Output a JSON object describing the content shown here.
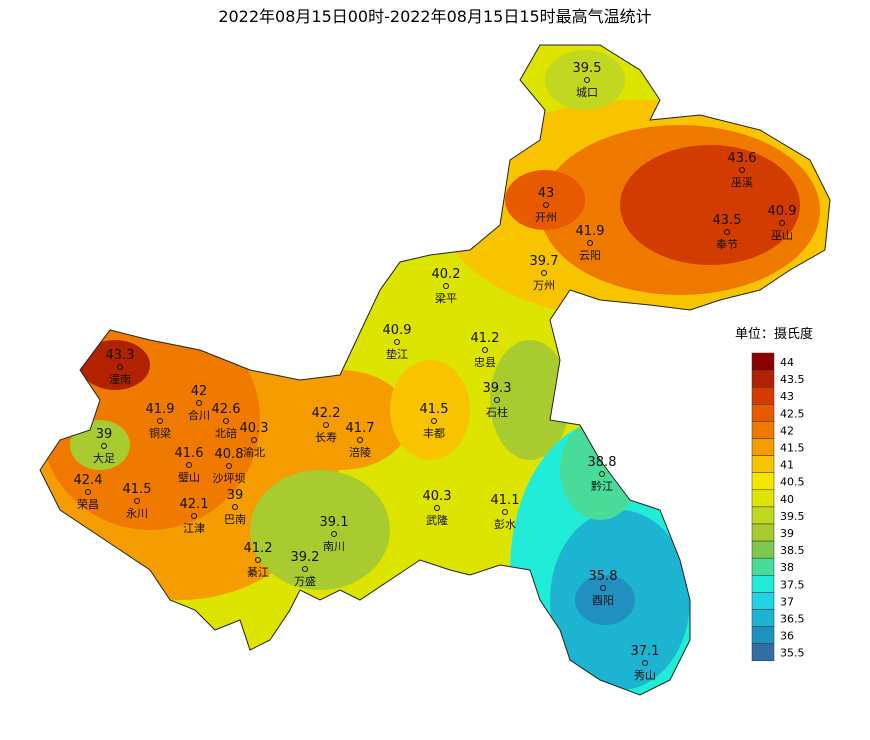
{
  "title": "2022年08月15日00时-2022年08月15日15时最高气温统计",
  "stations": [
    {
      "name": "城口",
      "value": 39.5
    },
    {
      "name": "巫溪",
      "value": 43.6
    },
    {
      "name": "开州",
      "value": 43
    },
    {
      "name": "奉节",
      "value": 43.5
    },
    {
      "name": "巫山",
      "value": 40.9
    },
    {
      "name": "云阳",
      "value": 41.9
    },
    {
      "name": "梁平",
      "value": 40.2
    },
    {
      "name": "万州",
      "value": 39.7
    },
    {
      "name": "垫江",
      "value": 40.9
    },
    {
      "name": "忠县",
      "value": 41.2
    },
    {
      "name": "潼南",
      "value": 43.3
    },
    {
      "name": "石柱",
      "value": 39.3
    },
    {
      "name": "合川",
      "value": 42
    },
    {
      "name": "铜梁",
      "value": 41.9
    },
    {
      "name": "北碚",
      "value": 42.6
    },
    {
      "name": "丰都",
      "value": 41.5
    },
    {
      "name": "长寿",
      "value": 42.2
    },
    {
      "name": "大足",
      "value": 39
    },
    {
      "name": "渝北",
      "value": 40.3
    },
    {
      "name": "涪陵",
      "value": 41.7
    },
    {
      "name": "璧山",
      "value": 41.6
    },
    {
      "name": "沙坪坝",
      "value": 40.8
    },
    {
      "name": "黔江",
      "value": 38.8
    },
    {
      "name": "荣昌",
      "value": 42.4
    },
    {
      "name": "巴南",
      "value": 39
    },
    {
      "name": "永川",
      "value": 41.5
    },
    {
      "name": "武隆",
      "value": 40.3
    },
    {
      "name": "彭水",
      "value": 41.1
    },
    {
      "name": "江津",
      "value": 42.1
    },
    {
      "name": "南川",
      "value": 39.1
    },
    {
      "name": "綦江",
      "value": 41.2
    },
    {
      "name": "万盛",
      "value": 39.2
    },
    {
      "name": "酉阳",
      "value": 35.8
    },
    {
      "name": "秀山",
      "value": 37.1
    }
  ],
  "legend": {
    "title": "单位：摄氏度",
    "levels": [
      {
        "value": 44,
        "color": "#8b0000"
      },
      {
        "value": 43.5,
        "color": "#b22200"
      },
      {
        "value": 43,
        "color": "#d23c00"
      },
      {
        "value": 42.5,
        "color": "#e85a00"
      },
      {
        "value": 42,
        "color": "#f07a00"
      },
      {
        "value": 41.5,
        "color": "#f59c00"
      },
      {
        "value": 41,
        "color": "#f8c400"
      },
      {
        "value": 40.5,
        "color": "#f5e600"
      },
      {
        "value": 40,
        "color": "#dde400"
      },
      {
        "value": 39.5,
        "color": "#c2d820"
      },
      {
        "value": 39,
        "color": "#a8cc30"
      },
      {
        "value": 38.5,
        "color": "#7cc850"
      },
      {
        "value": 38,
        "color": "#48dc98"
      },
      {
        "value": 37.5,
        "color": "#20ecd8"
      },
      {
        "value": 37,
        "color": "#20d4e4"
      },
      {
        "value": 36.5,
        "color": "#1cb4d0"
      },
      {
        "value": 36,
        "color": "#2090c0"
      },
      {
        "value": 35.5,
        "color": "#306ea4"
      }
    ]
  }
}
